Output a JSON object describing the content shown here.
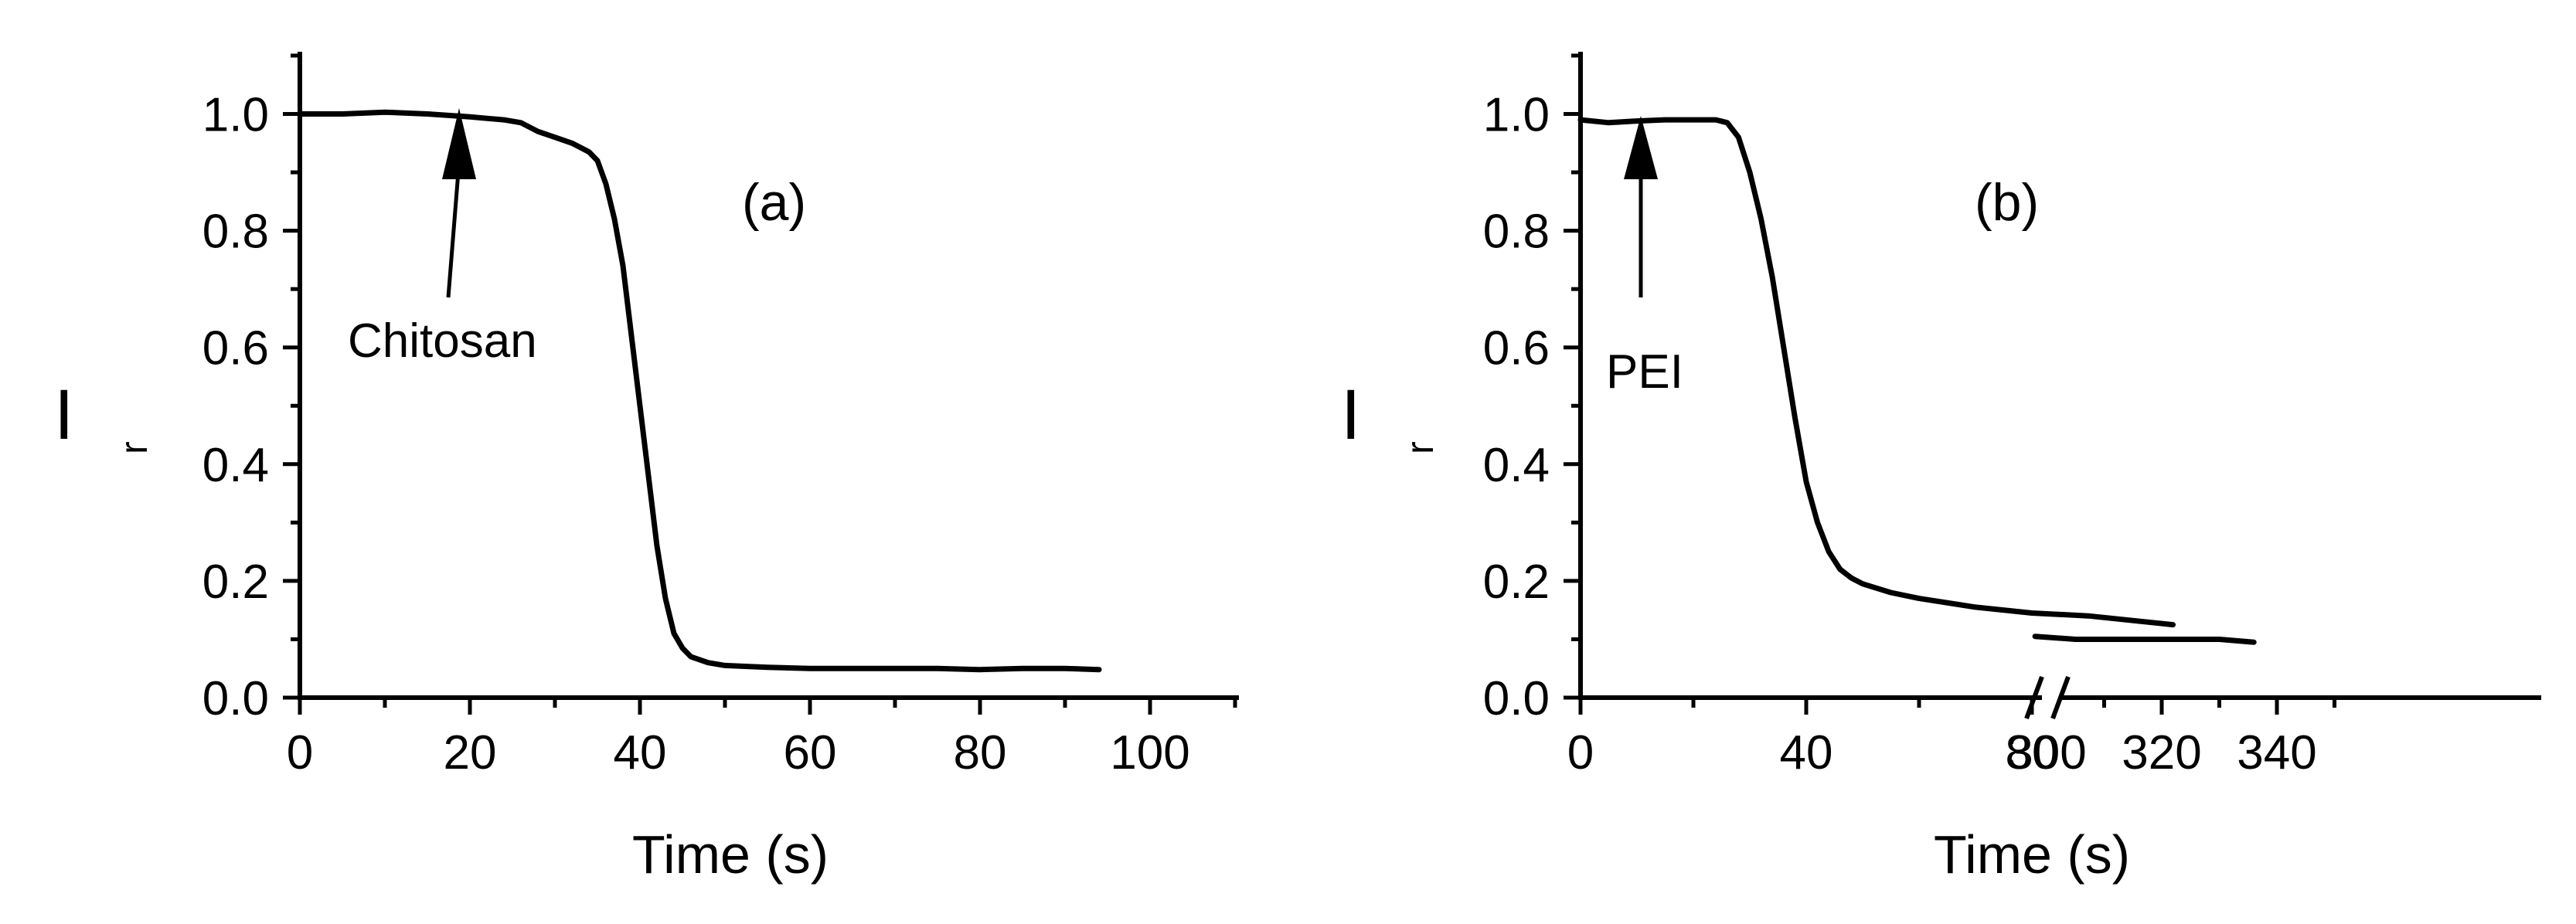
{
  "chart_data": [
    {
      "type": "line",
      "panel_label": "(a)",
      "xlabel": "Time (s)",
      "ylabel": "I",
      "ylabel_sub": "r",
      "xlim": [
        0,
        110
      ],
      "ylim": [
        0.0,
        1.1
      ],
      "x_ticks": [
        0,
        20,
        40,
        60,
        80,
        100
      ],
      "x_tick_labels": [
        "0",
        "20",
        "40",
        "60",
        "80",
        "100"
      ],
      "y_ticks": [
        0.0,
        0.2,
        0.4,
        0.6,
        0.8,
        1.0
      ],
      "y_tick_labels": [
        "0.0",
        "0.2",
        "0.4",
        "0.6",
        "0.8",
        "1.0"
      ],
      "series": [
        {
          "x": [
            0,
            5,
            10,
            15,
            20,
            24,
            26,
            28,
            30,
            32,
            34,
            35,
            36,
            37,
            38,
            39,
            40,
            41,
            42,
            43,
            44,
            45,
            46,
            48,
            50,
            55,
            60,
            65,
            70,
            75,
            80,
            85,
            90,
            94
          ],
          "y": [
            1.0,
            1.0,
            1.003,
            1.0,
            0.995,
            0.99,
            0.985,
            0.97,
            0.96,
            0.95,
            0.935,
            0.92,
            0.88,
            0.82,
            0.74,
            0.62,
            0.5,
            0.38,
            0.26,
            0.17,
            0.11,
            0.085,
            0.07,
            0.06,
            0.055,
            0.052,
            0.05,
            0.05,
            0.05,
            0.05,
            0.048,
            0.05,
            0.05,
            0.048
          ]
        }
      ],
      "annotations": [
        {
          "text": "Chitosan",
          "arrow_to_x": 19,
          "arrow_to_y": 1.0
        }
      ]
    },
    {
      "type": "line",
      "panel_label": "(b)",
      "xlabel": "Time (s)",
      "ylabel": "I",
      "ylabel_sub": "r",
      "x_break": "between 100 and 300",
      "ylim": [
        0.0,
        1.1
      ],
      "x_ticks": [
        0,
        40,
        80,
        300,
        320,
        340
      ],
      "x_tick_labels": [
        "0",
        "40",
        "80",
        "300",
        "320",
        "340"
      ],
      "y_ticks": [
        0.0,
        0.2,
        0.4,
        0.6,
        0.8,
        1.0
      ],
      "y_tick_labels": [
        "0.0",
        "0.2",
        "0.4",
        "0.6",
        "0.8",
        "1.0"
      ],
      "series": [
        {
          "segment": "before break",
          "x": [
            0,
            5,
            10,
            15,
            20,
            24,
            26,
            28,
            30,
            32,
            34,
            36,
            38,
            40,
            42,
            44,
            46,
            48,
            50,
            55,
            60,
            70,
            80,
            90,
            100,
            105
          ],
          "y": [
            0.99,
            0.985,
            0.988,
            0.99,
            0.99,
            0.99,
            0.985,
            0.96,
            0.9,
            0.82,
            0.72,
            0.6,
            0.48,
            0.37,
            0.3,
            0.25,
            0.22,
            0.205,
            0.195,
            0.18,
            0.17,
            0.155,
            0.145,
            0.14,
            0.13,
            0.125
          ]
        },
        {
          "segment": "after break",
          "x": [
            298,
            305,
            310,
            315,
            320,
            325,
            330,
            336
          ],
          "y": [
            0.105,
            0.1,
            0.1,
            0.1,
            0.1,
            0.1,
            0.1,
            0.095
          ]
        }
      ],
      "annotations": [
        {
          "text": "PEI",
          "arrow_to_x": 15,
          "arrow_to_y": 0.99
        }
      ]
    }
  ]
}
